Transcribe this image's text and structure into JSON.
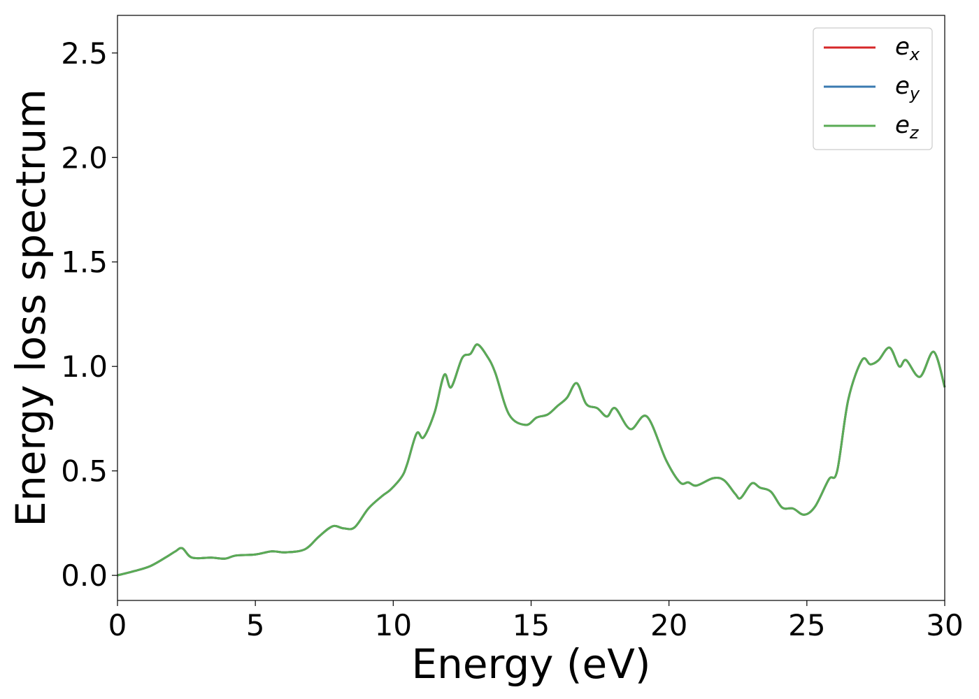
{
  "chart_data": {
    "type": "line",
    "xlabel": "Energy (eV)",
    "ylabel": "Energy loss spectrum",
    "xlim": [
      0,
      30
    ],
    "ylim": [
      -0.12,
      2.68
    ],
    "xticks": [
      "0",
      "5",
      "10",
      "15",
      "20",
      "25",
      "30"
    ],
    "yticks": [
      "0.0",
      "0.5",
      "1.0",
      "1.5",
      "2.0",
      "2.5"
    ],
    "grid": false,
    "legend_position": "top-right",
    "x": [
      0,
      0.6,
      1.2,
      1.8,
      2.1,
      2.35,
      2.7,
      3.4,
      3.9,
      4.3,
      5.0,
      5.6,
      6.1,
      6.8,
      7.3,
      7.8,
      8.2,
      8.6,
      9.1,
      9.6,
      9.9,
      10.3,
      10.5,
      10.85,
      11.1,
      11.5,
      11.85,
      12.1,
      12.5,
      12.8,
      13.05,
      13.4,
      13.7,
      14.2,
      14.8,
      15.2,
      15.6,
      15.95,
      16.3,
      16.65,
      17.0,
      17.4,
      17.75,
      18.05,
      18.6,
      19.2,
      19.9,
      20.4,
      20.7,
      21.0,
      21.6,
      22.0,
      22.4,
      22.6,
      23.0,
      23.3,
      23.7,
      24.1,
      24.5,
      24.9,
      25.3,
      25.8,
      26.1,
      26.5,
      27.0,
      27.3,
      27.6,
      28.0,
      28.35,
      28.6,
      29.1,
      29.6,
      30.0
    ],
    "series": [
      {
        "name": "e_x",
        "color": "#d62728",
        "values": [
          0.0,
          0.02,
          0.045,
          0.09,
          0.115,
          0.13,
          0.085,
          0.085,
          0.08,
          0.095,
          0.1,
          0.115,
          0.11,
          0.125,
          0.185,
          0.235,
          0.225,
          0.23,
          0.32,
          0.38,
          0.41,
          0.47,
          0.53,
          0.68,
          0.66,
          0.78,
          0.96,
          0.9,
          1.04,
          1.06,
          1.105,
          1.05,
          0.97,
          0.77,
          0.72,
          0.755,
          0.77,
          0.81,
          0.85,
          0.92,
          0.82,
          0.8,
          0.76,
          0.8,
          0.7,
          0.76,
          0.55,
          0.445,
          0.445,
          0.43,
          0.465,
          0.455,
          0.39,
          0.37,
          0.44,
          0.42,
          0.4,
          0.325,
          0.32,
          0.29,
          0.33,
          0.46,
          0.5,
          0.84,
          1.03,
          1.01,
          1.03,
          1.09,
          1.0,
          1.03,
          0.95,
          1.07,
          0.9
        ]
      },
      {
        "name": "e_y",
        "color": "#3a7ab0",
        "values": [
          0.0,
          0.02,
          0.045,
          0.09,
          0.115,
          0.13,
          0.085,
          0.085,
          0.08,
          0.095,
          0.1,
          0.115,
          0.11,
          0.125,
          0.185,
          0.235,
          0.225,
          0.23,
          0.32,
          0.38,
          0.41,
          0.47,
          0.53,
          0.68,
          0.66,
          0.78,
          0.96,
          0.9,
          1.04,
          1.06,
          1.105,
          1.05,
          0.97,
          0.77,
          0.72,
          0.755,
          0.77,
          0.81,
          0.85,
          0.92,
          0.82,
          0.8,
          0.76,
          0.8,
          0.7,
          0.76,
          0.55,
          0.445,
          0.445,
          0.43,
          0.465,
          0.455,
          0.39,
          0.37,
          0.44,
          0.42,
          0.4,
          0.325,
          0.32,
          0.29,
          0.33,
          0.46,
          0.5,
          0.84,
          1.03,
          1.01,
          1.03,
          1.09,
          1.0,
          1.03,
          0.95,
          1.07,
          0.9
        ]
      },
      {
        "name": "e_z",
        "color": "#5aab55",
        "values": [
          0.0,
          0.02,
          0.045,
          0.09,
          0.115,
          0.13,
          0.085,
          0.085,
          0.08,
          0.095,
          0.1,
          0.115,
          0.11,
          0.125,
          0.185,
          0.235,
          0.225,
          0.23,
          0.32,
          0.38,
          0.41,
          0.47,
          0.53,
          0.68,
          0.66,
          0.78,
          0.96,
          0.9,
          1.04,
          1.06,
          1.105,
          1.05,
          0.97,
          0.77,
          0.72,
          0.755,
          0.77,
          0.81,
          0.85,
          0.92,
          0.82,
          0.8,
          0.76,
          0.8,
          0.7,
          0.76,
          0.55,
          0.445,
          0.445,
          0.43,
          0.465,
          0.455,
          0.39,
          0.37,
          0.44,
          0.42,
          0.4,
          0.325,
          0.32,
          0.29,
          0.33,
          0.46,
          0.5,
          0.84,
          1.03,
          1.01,
          1.03,
          1.09,
          1.0,
          1.03,
          0.95,
          1.07,
          0.9
        ]
      }
    ],
    "legend": [
      {
        "base": "e",
        "sub": "x"
      },
      {
        "base": "e",
        "sub": "y"
      },
      {
        "base": "e",
        "sub": "z"
      }
    ]
  }
}
